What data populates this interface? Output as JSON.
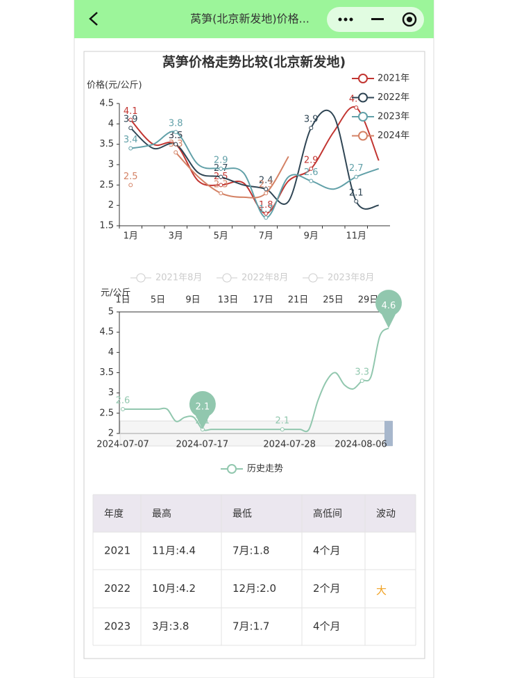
{
  "header": {
    "title": "莴笋(北京新发地)价格..."
  },
  "chart_data": [
    {
      "type": "line",
      "title": "莴笋价格走势比较(北京新发地)",
      "y_label": "价格(元/公斤)",
      "categories": [
        "1月",
        null,
        "3月",
        null,
        "5月",
        null,
        "7月",
        null,
        "9月",
        null,
        "11月",
        null
      ],
      "series": [
        {
          "name": "2021年",
          "color": "#c23531",
          "values": [
            4.1,
            3.5,
            3.5,
            2.6,
            2.5,
            2.55,
            1.8,
            2.6,
            2.9,
            3.8,
            4.4,
            3.1
          ]
        },
        {
          "name": "2022年",
          "color": "#2f4554",
          "values": [
            3.9,
            3.4,
            3.5,
            2.8,
            2.7,
            2.5,
            2.4,
            2.1,
            3.9,
            4.2,
            2.1,
            2.0
          ]
        },
        {
          "name": "2023年",
          "color": "#61a0a8",
          "values": [
            3.4,
            3.5,
            3.8,
            3.0,
            2.9,
            2.8,
            1.7,
            2.7,
            2.6,
            2.4,
            2.7,
            2.9
          ]
        },
        {
          "name": "2024年",
          "color": "#d48265",
          "values": [
            2.5,
            null,
            3.3,
            2.7,
            2.3,
            2.2,
            2.3,
            3.2,
            null,
            null,
            null,
            null
          ]
        }
      ],
      "ylim": [
        1.5,
        4.5
      ],
      "yticks": [
        1.5,
        2,
        2.5,
        3,
        3.5,
        4,
        4.5
      ],
      "legend": "top-right"
    },
    {
      "type": "line",
      "y_label": "元/公斤",
      "x": [
        "2024-07-07",
        "2024-07-08",
        "2024-07-09",
        "2024-07-10",
        "2024-07-11",
        "2024-07-12",
        "2024-07-13",
        "2024-07-14",
        "2024-07-15",
        "2024-07-16",
        "2024-07-17",
        "2024-07-18",
        "2024-07-19",
        "2024-07-20",
        "2024-07-21",
        "2024-07-22",
        "2024-07-23",
        "2024-07-24",
        "2024-07-25",
        "2024-07-26",
        "2024-07-27",
        "2024-07-28",
        "2024-07-29",
        "2024-07-30",
        "2024-07-31",
        "2024-08-01",
        "2024-08-02",
        "2024-08-03",
        "2024-08-04",
        "2024-08-05",
        "2024-08-06"
      ],
      "x2ticks": [
        "1日",
        "5日",
        "9日",
        "13日",
        "17日",
        "21日",
        "25日",
        "29日"
      ],
      "legend_inactive": [
        "2021年8月",
        "2022年8月",
        "2023年8月"
      ],
      "series": [
        {
          "name": "历史走势",
          "color": "#91c7ae",
          "values": [
            2.6,
            2.6,
            2.6,
            2.6,
            2.6,
            2.6,
            2.3,
            2.4,
            2.4,
            2.1,
            2.1,
            2.1,
            2.1,
            2.1,
            2.1,
            2.1,
            2.1,
            2.1,
            2.1,
            2.1,
            2.1,
            2.1,
            2.8,
            3.3,
            3.5,
            3.2,
            3.1,
            3.3,
            3.4,
            4.4,
            4.6
          ]
        }
      ],
      "ylim": [
        2,
        5
      ],
      "yticks": [
        2,
        2.5,
        3,
        3.5,
        4,
        4.5,
        5
      ]
    }
  ],
  "table": {
    "headers": [
      "年度",
      "最高",
      "最低",
      "高低间",
      "波动"
    ],
    "rows": [
      [
        "2021",
        "11月:4.4",
        "7月:1.8",
        "4个月",
        null
      ],
      [
        "2022",
        "10月:4.2",
        "12月:2.0",
        "2个月",
        "大"
      ],
      [
        "2023",
        "3月:3.8",
        "7月:1.7",
        "4个月",
        null
      ]
    ],
    "highlight_color": "#f0a020"
  }
}
